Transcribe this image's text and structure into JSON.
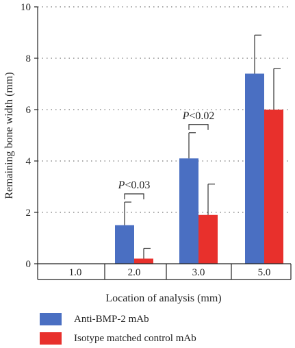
{
  "chart_data": {
    "type": "bar",
    "xlabel": "Location of analysis (mm)",
    "ylabel": "Remaining bone width (mm)",
    "categories": [
      "1.0",
      "2.0",
      "3.0",
      "5.0"
    ],
    "ylim": [
      0,
      10
    ],
    "yticks": [
      "0",
      "2",
      "4",
      "6",
      "8",
      "10"
    ],
    "grid": "horizontal dotted",
    "legend_position": "bottom",
    "series": [
      {
        "name": "Anti-BMP-2 mAb",
        "color": "#4a6fc2",
        "values": [
          0,
          1.5,
          4.1,
          7.4
        ],
        "errors": [
          0,
          0.9,
          1.0,
          1.5
        ]
      },
      {
        "name": "Isotype matched control mAb",
        "color": "#e8302c",
        "values": [
          0,
          0.2,
          1.9,
          6.0
        ],
        "errors": [
          0,
          0.4,
          1.2,
          1.6
        ]
      }
    ],
    "annotations": [
      {
        "category": "2.0",
        "text_italic": "P",
        "text": "<0.03"
      },
      {
        "category": "3.0",
        "text_italic": "P",
        "text": "<0.02"
      }
    ]
  }
}
